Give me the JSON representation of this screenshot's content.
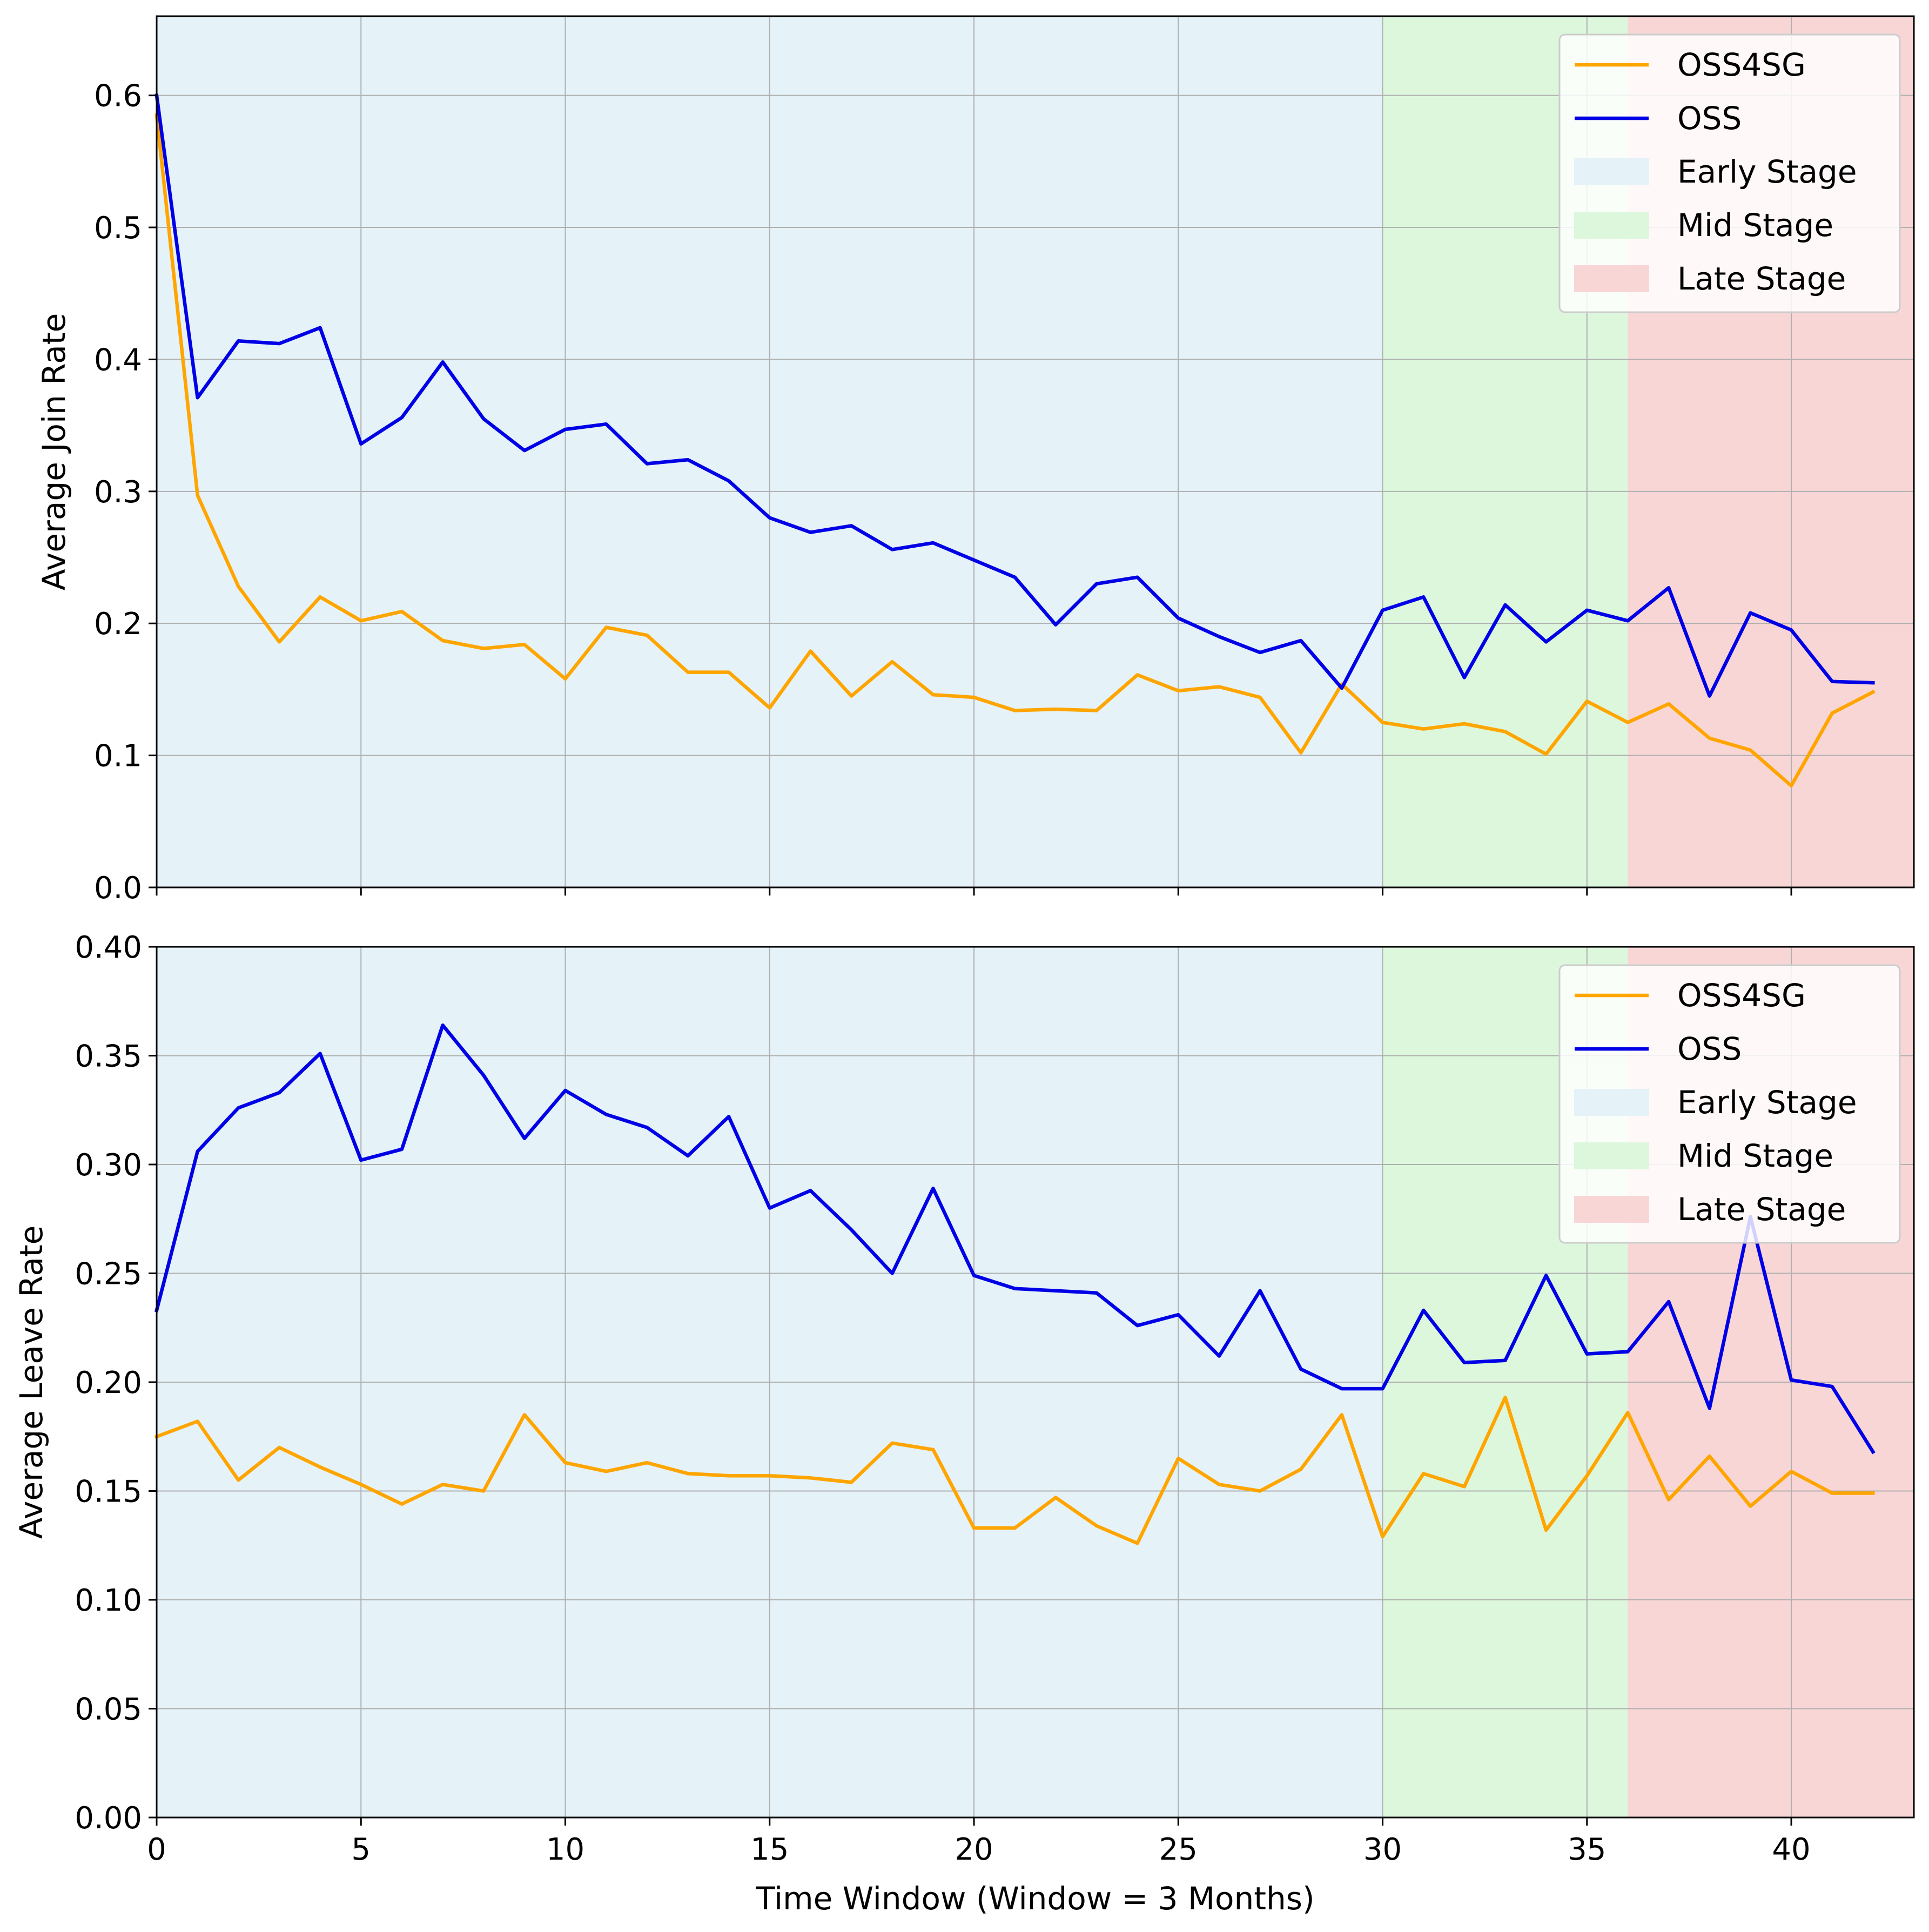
{
  "chart_data": [
    {
      "type": "line",
      "panel": "top",
      "title": "",
      "xlabel": "",
      "ylabel": "Average Join Rate",
      "xlim": [
        0,
        43
      ],
      "ylim": [
        0,
        0.66
      ],
      "x_ticks": [
        0,
        5,
        10,
        15,
        20,
        25,
        30,
        35,
        40
      ],
      "x_tick_labels": [],
      "y_ticks": [
        0.0,
        0.1,
        0.2,
        0.3,
        0.4,
        0.5,
        0.6
      ],
      "y_tick_labels": [
        "0.0",
        "0.1",
        "0.2",
        "0.3",
        "0.4",
        "0.5",
        "0.6"
      ],
      "grid": true,
      "legend_position": "top-right",
      "stages": [
        {
          "name": "Early Stage",
          "start": 0,
          "end": 30,
          "color": "#e5f2f8"
        },
        {
          "name": "Mid Stage",
          "start": 30,
          "end": 36,
          "color": "#ddf7dd"
        },
        {
          "name": "Late Stage",
          "start": 36,
          "end": 43,
          "color": "#f9d6d6"
        }
      ],
      "x": [
        0,
        1,
        2,
        3,
        4,
        5,
        6,
        7,
        8,
        9,
        10,
        11,
        12,
        13,
        14,
        15,
        16,
        17,
        18,
        19,
        20,
        21,
        22,
        23,
        24,
        25,
        26,
        27,
        28,
        29,
        30,
        31,
        32,
        33,
        34,
        35,
        36,
        37,
        38,
        39,
        40,
        41,
        42
      ],
      "series": [
        {
          "name": "OSS4SG",
          "color": "#ffa500",
          "values": [
            0.585,
            0.297,
            0.228,
            0.186,
            0.22,
            0.202,
            0.209,
            0.187,
            0.181,
            0.184,
            0.158,
            0.197,
            0.191,
            0.163,
            0.163,
            0.136,
            0.179,
            0.145,
            0.171,
            0.146,
            0.144,
            0.134,
            0.135,
            0.134,
            0.161,
            0.149,
            0.152,
            0.144,
            0.102,
            0.154,
            0.125,
            0.12,
            0.124,
            0.118,
            0.101,
            0.141,
            0.125,
            0.139,
            0.113,
            0.104,
            0.077,
            0.132,
            0.148
          ]
        },
        {
          "name": "OSS",
          "color": "#0000e6",
          "values": [
            0.6,
            0.371,
            0.414,
            0.412,
            0.424,
            0.336,
            0.356,
            0.398,
            0.355,
            0.331,
            0.347,
            0.351,
            0.321,
            0.324,
            0.308,
            0.28,
            0.269,
            0.274,
            0.256,
            0.261,
            0.248,
            0.235,
            0.199,
            0.23,
            0.235,
            0.204,
            0.19,
            0.178,
            0.187,
            0.151,
            0.21,
            0.22,
            0.159,
            0.214,
            0.186,
            0.21,
            0.202,
            0.227,
            0.145,
            0.208,
            0.195,
            0.156,
            0.155
          ]
        }
      ],
      "legend": [
        "OSS4SG",
        "OSS",
        "Early Stage",
        "Mid Stage",
        "Late Stage"
      ]
    },
    {
      "type": "line",
      "panel": "bottom",
      "title": "",
      "xlabel": "Time Window (Window = 3 Months)",
      "ylabel": "Average Leave Rate",
      "xlim": [
        0,
        43
      ],
      "ylim": [
        0,
        0.4
      ],
      "x_ticks": [
        0,
        5,
        10,
        15,
        20,
        25,
        30,
        35,
        40
      ],
      "x_tick_labels": [
        "0",
        "5",
        "10",
        "15",
        "20",
        "25",
        "30",
        "35",
        "40"
      ],
      "y_ticks": [
        0.0,
        0.05,
        0.1,
        0.15,
        0.2,
        0.25,
        0.3,
        0.35,
        0.4
      ],
      "y_tick_labels": [
        "0.00",
        "0.05",
        "0.10",
        "0.15",
        "0.20",
        "0.25",
        "0.30",
        "0.35",
        "0.40"
      ],
      "grid": true,
      "legend_position": "top-right",
      "stages": [
        {
          "name": "Early Stage",
          "start": 0,
          "end": 30,
          "color": "#e5f2f8"
        },
        {
          "name": "Mid Stage",
          "start": 30,
          "end": 36,
          "color": "#ddf7dd"
        },
        {
          "name": "Late Stage",
          "start": 36,
          "end": 43,
          "color": "#f9d6d6"
        }
      ],
      "x": [
        0,
        1,
        2,
        3,
        4,
        5,
        6,
        7,
        8,
        9,
        10,
        11,
        12,
        13,
        14,
        15,
        16,
        17,
        18,
        19,
        20,
        21,
        22,
        23,
        24,
        25,
        26,
        27,
        28,
        29,
        30,
        31,
        32,
        33,
        34,
        35,
        36,
        37,
        38,
        39,
        40,
        41,
        42
      ],
      "series": [
        {
          "name": "OSS4SG",
          "color": "#ffa500",
          "values": [
            0.175,
            0.182,
            0.155,
            0.17,
            0.161,
            0.153,
            0.144,
            0.153,
            0.15,
            0.185,
            0.163,
            0.159,
            0.163,
            0.158,
            0.157,
            0.157,
            0.156,
            0.154,
            0.172,
            0.169,
            0.133,
            0.133,
            0.147,
            0.134,
            0.126,
            0.165,
            0.153,
            0.15,
            0.16,
            0.185,
            0.129,
            0.158,
            0.152,
            0.193,
            0.132,
            0.157,
            0.186,
            0.146,
            0.166,
            0.143,
            0.159,
            0.149,
            0.149
          ]
        },
        {
          "name": "OSS",
          "color": "#0000e6",
          "values": [
            0.233,
            0.306,
            0.326,
            0.333,
            0.351,
            0.302,
            0.307,
            0.364,
            0.341,
            0.312,
            0.334,
            0.323,
            0.317,
            0.304,
            0.322,
            0.28,
            0.288,
            0.27,
            0.25,
            0.289,
            0.249,
            0.243,
            0.242,
            0.241,
            0.226,
            0.231,
            0.212,
            0.242,
            0.206,
            0.197,
            0.197,
            0.233,
            0.209,
            0.21,
            0.249,
            0.213,
            0.214,
            0.237,
            0.188,
            0.276,
            0.201,
            0.198,
            0.168
          ]
        }
      ],
      "legend": [
        "OSS4SG",
        "OSS",
        "Early Stage",
        "Mid Stage",
        "Late Stage"
      ]
    }
  ]
}
